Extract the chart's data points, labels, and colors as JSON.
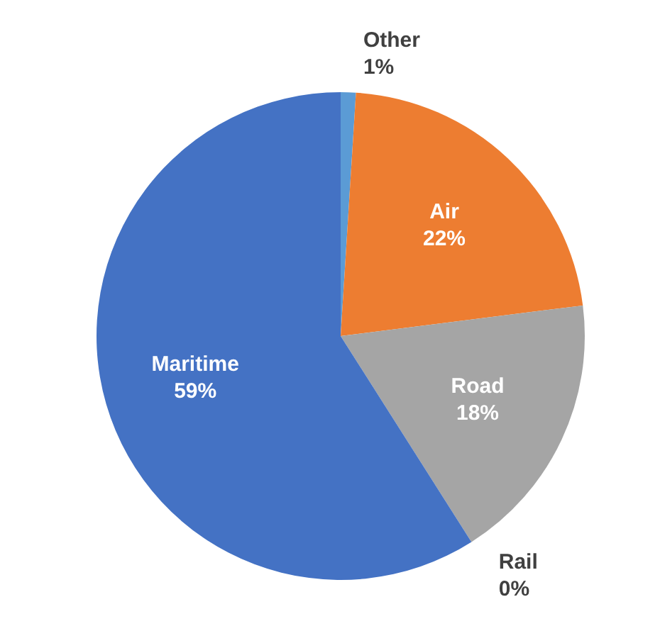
{
  "chart_data": {
    "type": "pie",
    "categories": [
      "Other",
      "Air",
      "Road",
      "Rail",
      "Maritime"
    ],
    "values": [
      1,
      22,
      18,
      0,
      59
    ],
    "value_labels": [
      "1%",
      "22%",
      "18%",
      "0%",
      "59%"
    ],
    "colors": [
      "#5b9bd5",
      "#ed7d31",
      "#a5a5a5",
      "#ffc000",
      "#4472c4"
    ],
    "legend": false
  }
}
